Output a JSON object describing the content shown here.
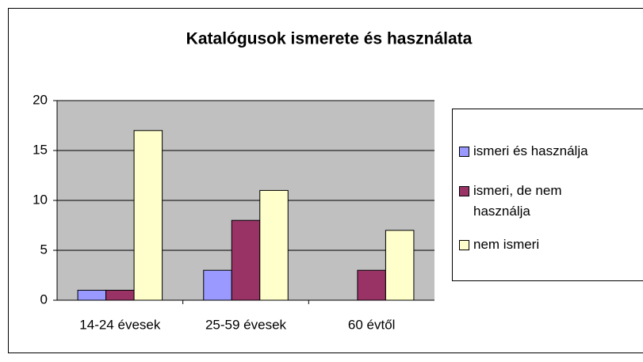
{
  "chart_data": {
    "type": "bar",
    "title": "Katalógusok ismerete és használata",
    "categories": [
      "14-24 évesek",
      "25-59 évesek",
      "60 évtől"
    ],
    "series": [
      {
        "name": "ismeri és használja",
        "color": "#9999ff",
        "values": [
          1,
          3,
          0
        ]
      },
      {
        "name": "ismeri, de nem használja",
        "color": "#993366",
        "values": [
          1,
          8,
          3
        ]
      },
      {
        "name": "nem ismeri",
        "color": "#ffffcc",
        "values": [
          17,
          11,
          7
        ]
      }
    ],
    "ylim": [
      0,
      20
    ],
    "yticks": [
      0,
      5,
      10,
      15,
      20
    ],
    "grid": true,
    "legend": "right"
  }
}
